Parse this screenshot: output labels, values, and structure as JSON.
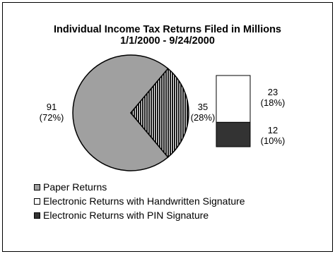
{
  "chart_data": {
    "type": "pie",
    "title": "Individual Income Tax Returns Filed in Millions",
    "subtitle": "1/1/2000 - 9/24/2000",
    "pie": {
      "slices": [
        {
          "value": 91,
          "value_label": "91",
          "percent_label": "(72%)",
          "color": "#a0a0a0"
        },
        {
          "value": 35,
          "value_label": "35",
          "percent_label": "(28%)",
          "color": "#202020",
          "pattern": "vertical-lines"
        }
      ]
    },
    "breakdown_bar": {
      "type": "stacked-bar",
      "segments": [
        {
          "value": 23,
          "value_label": "23",
          "percent_label": "(18%)",
          "color": "#ffffff"
        },
        {
          "value": 12,
          "value_label": "12",
          "percent_label": "(10%)",
          "color": "#333333"
        }
      ]
    },
    "legend": [
      {
        "label": "Paper Returns",
        "color": "#a0a0a0"
      },
      {
        "label": "Electronic Returns with Handwritten Signature",
        "color": "#ffffff"
      },
      {
        "label": "Electronic Returns with PIN Signature",
        "color": "#333333"
      }
    ],
    "legend_position": "bottom-left"
  }
}
